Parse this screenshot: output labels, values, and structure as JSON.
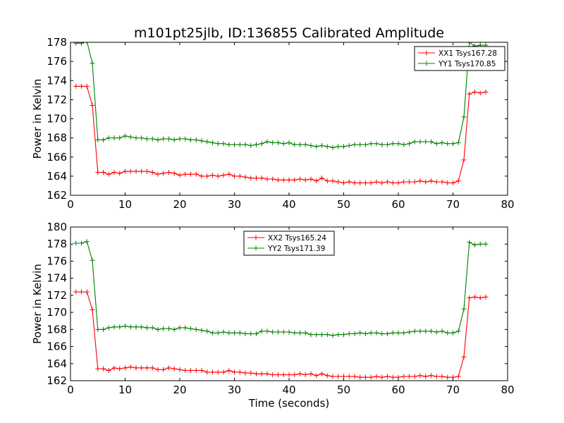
{
  "title": "m101pt25jlb, ID:136855 Calibrated Amplitude",
  "chart_data": [
    {
      "type": "line",
      "ylabel": "Power in Kelvin",
      "xlabel": "",
      "xlim": [
        0,
        80
      ],
      "ylim": [
        162,
        178
      ],
      "xticks": [
        0,
        10,
        20,
        30,
        40,
        50,
        60,
        70,
        80
      ],
      "yticks": [
        162,
        164,
        166,
        168,
        170,
        172,
        174,
        176,
        178
      ],
      "legend_position": "top-right",
      "grid": false,
      "x": [
        1,
        2,
        3,
        4,
        5,
        6,
        7,
        8,
        9,
        10,
        11,
        12,
        13,
        14,
        15,
        16,
        17,
        18,
        19,
        20,
        21,
        22,
        23,
        24,
        25,
        26,
        27,
        28,
        29,
        30,
        31,
        32,
        33,
        34,
        35,
        36,
        37,
        38,
        39,
        40,
        41,
        42,
        43,
        44,
        45,
        46,
        47,
        48,
        49,
        50,
        51,
        52,
        53,
        54,
        55,
        56,
        57,
        58,
        59,
        60,
        61,
        62,
        63,
        64,
        65,
        66,
        67,
        68,
        69,
        70,
        71,
        72,
        73,
        74,
        75,
        76
      ],
      "series": [
        {
          "name": "XX1 Tsys167.28",
          "color": "#ff0000",
          "values": [
            173.4,
            173.4,
            173.4,
            171.4,
            164.4,
            164.4,
            164.2,
            164.4,
            164.3,
            164.5,
            164.5,
            164.5,
            164.5,
            164.5,
            164.4,
            164.2,
            164.3,
            164.4,
            164.3,
            164.1,
            164.2,
            164.2,
            164.2,
            164.0,
            164.0,
            164.1,
            164.0,
            164.1,
            164.2,
            164.0,
            164.0,
            163.9,
            163.8,
            163.8,
            163.8,
            163.7,
            163.7,
            163.6,
            163.6,
            163.6,
            163.6,
            163.7,
            163.6,
            163.7,
            163.5,
            163.8,
            163.5,
            163.5,
            163.4,
            163.3,
            163.4,
            163.3,
            163.3,
            163.3,
            163.3,
            163.4,
            163.3,
            163.4,
            163.3,
            163.3,
            163.4,
            163.4,
            163.4,
            163.5,
            163.4,
            163.5,
            163.4,
            163.4,
            163.3,
            163.3,
            163.5,
            165.7,
            172.6,
            172.8,
            172.7,
            172.8
          ]
        },
        {
          "name": "YY1 Tsys170.85",
          "color": "#008000",
          "values": [
            177.9,
            177.9,
            178.1,
            175.8,
            167.8,
            167.8,
            168.0,
            168.0,
            168.0,
            168.2,
            168.1,
            168.0,
            168.0,
            167.9,
            167.9,
            167.8,
            167.9,
            167.9,
            167.8,
            167.9,
            167.9,
            167.8,
            167.8,
            167.7,
            167.6,
            167.5,
            167.4,
            167.4,
            167.3,
            167.3,
            167.3,
            167.3,
            167.2,
            167.3,
            167.4,
            167.6,
            167.5,
            167.5,
            167.4,
            167.5,
            167.3,
            167.3,
            167.3,
            167.2,
            167.1,
            167.2,
            167.1,
            167.0,
            167.1,
            167.1,
            167.2,
            167.3,
            167.3,
            167.3,
            167.4,
            167.4,
            167.3,
            167.3,
            167.4,
            167.4,
            167.3,
            167.4,
            167.6,
            167.6,
            167.6,
            167.6,
            167.4,
            167.5,
            167.4,
            167.4,
            167.5,
            170.2,
            178.0,
            177.6,
            177.7,
            177.7
          ]
        }
      ]
    },
    {
      "type": "line",
      "ylabel": "Power in Kelvin",
      "xlabel": "Time (seconds)",
      "xlim": [
        0,
        80
      ],
      "ylim": [
        162,
        180
      ],
      "xticks": [
        0,
        10,
        20,
        30,
        40,
        50,
        60,
        70,
        80
      ],
      "yticks": [
        162,
        164,
        166,
        168,
        170,
        172,
        174,
        176,
        178,
        180
      ],
      "legend_position": "top-center",
      "grid": false,
      "x": [
        1,
        2,
        3,
        4,
        5,
        6,
        7,
        8,
        9,
        10,
        11,
        12,
        13,
        14,
        15,
        16,
        17,
        18,
        19,
        20,
        21,
        22,
        23,
        24,
        25,
        26,
        27,
        28,
        29,
        30,
        31,
        32,
        33,
        34,
        35,
        36,
        37,
        38,
        39,
        40,
        41,
        42,
        43,
        44,
        45,
        46,
        47,
        48,
        49,
        50,
        51,
        52,
        53,
        54,
        55,
        56,
        57,
        58,
        59,
        60,
        61,
        62,
        63,
        64,
        65,
        66,
        67,
        68,
        69,
        70,
        71,
        72,
        73,
        74,
        75,
        76
      ],
      "series": [
        {
          "name": "XX2 Tsys165.24",
          "color": "#ff0000",
          "values": [
            172.4,
            172.4,
            172.4,
            170.3,
            163.4,
            163.4,
            163.2,
            163.5,
            163.4,
            163.5,
            163.6,
            163.5,
            163.5,
            163.5,
            163.5,
            163.3,
            163.3,
            163.5,
            163.4,
            163.3,
            163.2,
            163.2,
            163.2,
            163.2,
            163.0,
            163.0,
            163.0,
            163.0,
            163.2,
            163.0,
            163.0,
            162.9,
            162.9,
            162.8,
            162.8,
            162.8,
            162.7,
            162.7,
            162.7,
            162.7,
            162.7,
            162.8,
            162.7,
            162.8,
            162.6,
            162.8,
            162.6,
            162.5,
            162.5,
            162.5,
            162.5,
            162.5,
            162.4,
            162.4,
            162.4,
            162.5,
            162.4,
            162.5,
            162.4,
            162.4,
            162.5,
            162.5,
            162.5,
            162.6,
            162.5,
            162.6,
            162.5,
            162.5,
            162.4,
            162.4,
            162.5,
            164.8,
            171.7,
            171.8,
            171.7,
            171.8
          ]
        },
        {
          "name": "YY2 Tsys171.39",
          "color": "#008000",
          "values": [
            178.1,
            178.1,
            178.3,
            176.1,
            168.0,
            168.0,
            168.2,
            168.3,
            168.3,
            168.4,
            168.3,
            168.3,
            168.3,
            168.2,
            168.2,
            168.0,
            168.1,
            168.1,
            168.0,
            168.2,
            168.2,
            168.1,
            168.0,
            167.9,
            167.8,
            167.6,
            167.6,
            167.7,
            167.6,
            167.6,
            167.6,
            167.5,
            167.5,
            167.5,
            167.8,
            167.8,
            167.7,
            167.7,
            167.7,
            167.7,
            167.6,
            167.6,
            167.6,
            167.4,
            167.4,
            167.4,
            167.4,
            167.3,
            167.4,
            167.4,
            167.5,
            167.5,
            167.6,
            167.5,
            167.6,
            167.6,
            167.5,
            167.5,
            167.6,
            167.6,
            167.6,
            167.7,
            167.8,
            167.8,
            167.8,
            167.8,
            167.7,
            167.8,
            167.6,
            167.6,
            167.8,
            170.4,
            178.2,
            177.9,
            178.0,
            178.0
          ]
        }
      ]
    }
  ]
}
